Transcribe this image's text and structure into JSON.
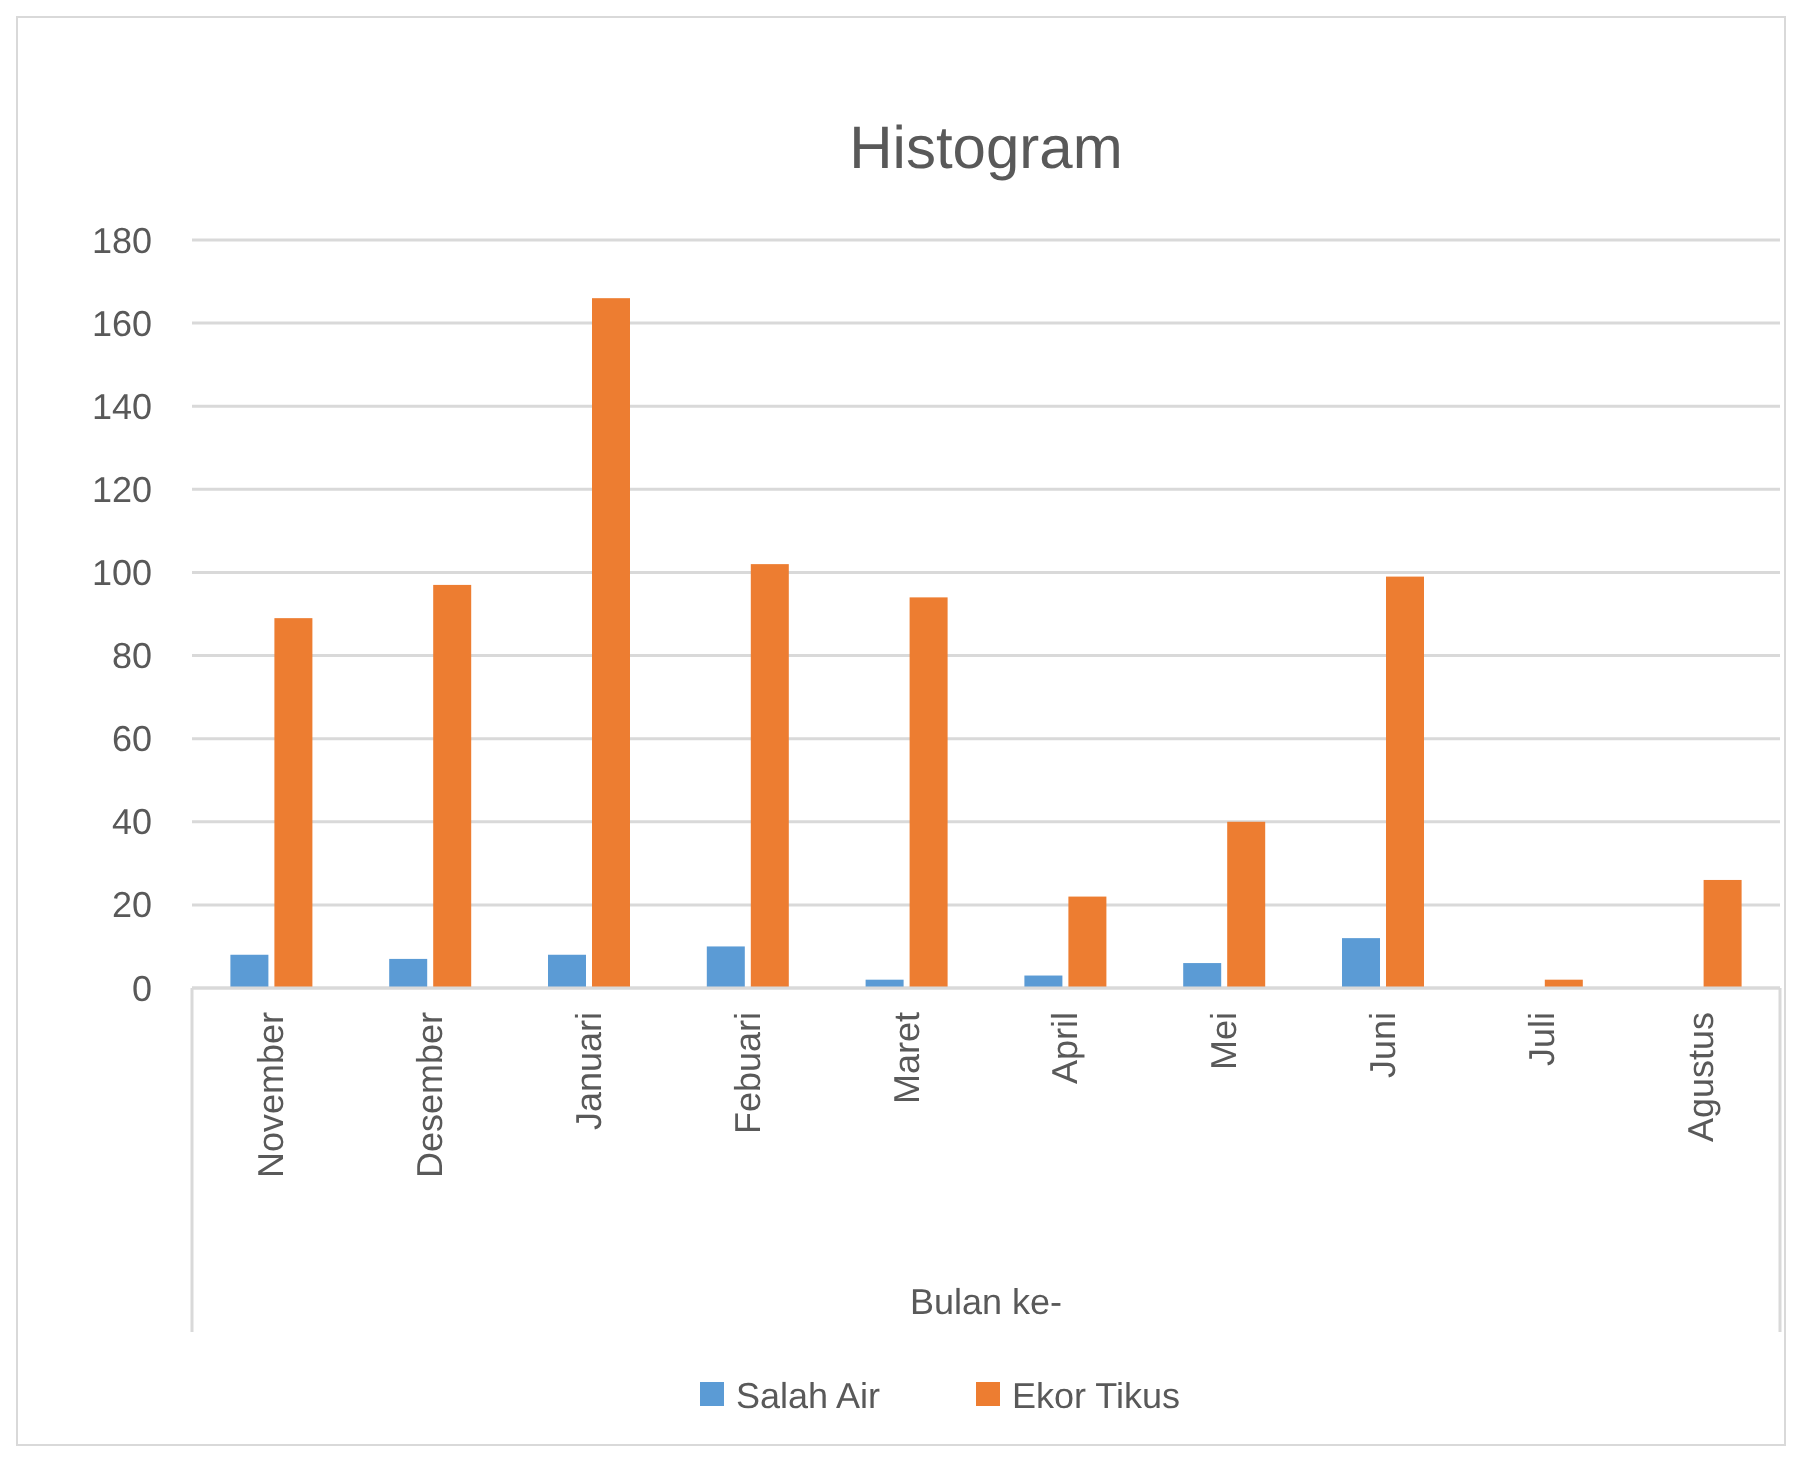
{
  "chart_data": {
    "type": "bar",
    "title": "Histogram",
    "xlabel": "Bulan ke-",
    "categories": [
      "November",
      "Desember",
      "Januari",
      "Febuari",
      "Maret",
      "April",
      "Mei",
      "Juni",
      "Juli",
      "Agustus"
    ],
    "series": [
      {
        "name": "Salah Air",
        "color": "#5b9bd5",
        "values": [
          8,
          7,
          8,
          10,
          2,
          3,
          6,
          12,
          0,
          0
        ]
      },
      {
        "name": "Ekor Tikus",
        "color": "#ed7d31",
        "values": [
          89,
          97,
          166,
          102,
          94,
          22,
          40,
          99,
          2,
          26
        ]
      }
    ],
    "ylim": [
      0,
      180
    ],
    "yticks": [
      0,
      20,
      40,
      60,
      80,
      100,
      120,
      140,
      160,
      180
    ],
    "grid": "y",
    "legend": "bottom"
  }
}
